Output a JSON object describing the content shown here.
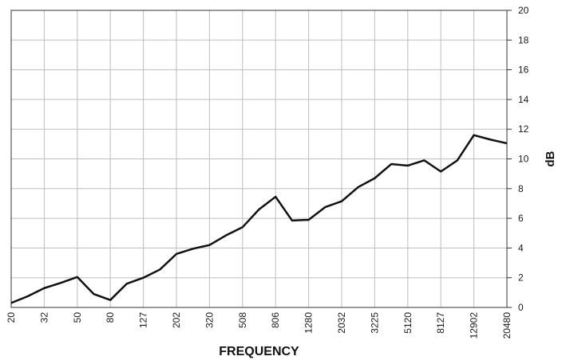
{
  "chart_data": {
    "type": "line",
    "xlabel": "FREQUENCY",
    "ylabel": "dB",
    "ylim": [
      0,
      20
    ],
    "y_ticks": [
      0,
      2,
      4,
      6,
      8,
      10,
      12,
      14,
      16,
      18,
      20
    ],
    "x_tick_labels": [
      "20",
      "32",
      "50",
      "80",
      "127",
      "202",
      "320",
      "508",
      "806",
      "1280",
      "2032",
      "3225",
      "5120",
      "8127",
      "12902",
      "20480"
    ],
    "grid": true,
    "line_color": "#111111",
    "series": [
      {
        "values": [
          0.3,
          0.75,
          1.3,
          1.65,
          2.05,
          0.9,
          0.5,
          1.6,
          2.0,
          2.55,
          3.6,
          3.95,
          4.2,
          4.85,
          5.4,
          6.6,
          7.45,
          5.85,
          5.9,
          6.75,
          7.15,
          8.1,
          8.7,
          9.65,
          9.55,
          9.9,
          9.15,
          9.9,
          11.6,
          11.3,
          11.05
        ]
      }
    ]
  }
}
